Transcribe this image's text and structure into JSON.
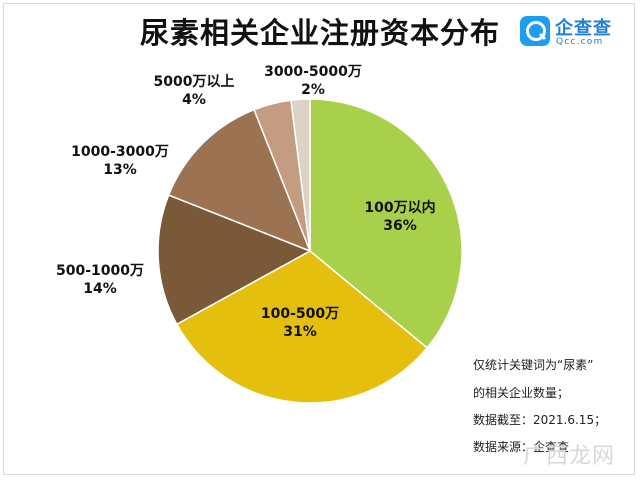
{
  "title": "尿素相关企业注册资本分布",
  "logo": {
    "name": "企查查",
    "url": "Qcc.com"
  },
  "notes": [
    "仅统计关键词为“尿素”",
    "的相关企业数量；",
    "数据截至：2021.6.15；",
    "数据来源：企查查"
  ],
  "watermark": "广西龙网",
  "chart_data": {
    "type": "pie",
    "title": "尿素相关企业注册资本分布",
    "slices": [
      {
        "label": "100万以内",
        "value": 36,
        "display": "36%",
        "color": "#a8d04a"
      },
      {
        "label": "100-500万",
        "value": 31,
        "display": "31%",
        "color": "#e5bf0d"
      },
      {
        "label": "500-1000万",
        "value": 14,
        "display": "14%",
        "color": "#7a5939"
      },
      {
        "label": "1000-3000万",
        "value": 13,
        "display": "13%",
        "color": "#9b7353"
      },
      {
        "label": "5000万以上",
        "value": 4,
        "display": "4%",
        "color": "#c39c82"
      },
      {
        "label": "3000-5000万",
        "value": 2,
        "display": "2%",
        "color": "#ddd2c6"
      }
    ]
  }
}
